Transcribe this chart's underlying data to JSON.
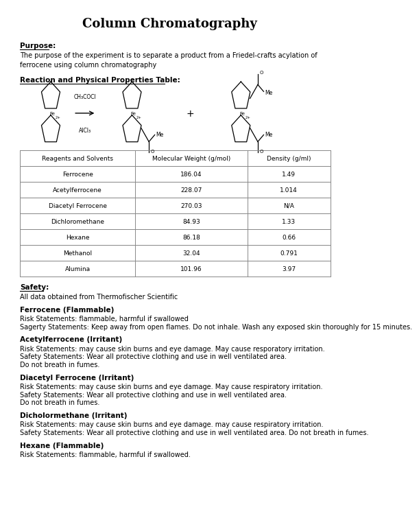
{
  "title": "Column Chromatography",
  "purpose_label": "Purpose:",
  "purpose_text": "The purpose of the experiment is to separate a product from a Friedel-crafts acylation of\nferrocene using column chromatography",
  "reaction_label": "Reaction and Physical Properties Table:",
  "table_headers": [
    "Reagents and Solvents",
    "Molecular Weight (g/mol)",
    "Density (g/ml)"
  ],
  "table_rows": [
    [
      "Ferrocene",
      "186.04",
      "1.49"
    ],
    [
      "Acetylferrocene",
      "228.07",
      "1.014"
    ],
    [
      "Diacetyl Ferrocene",
      "270.03",
      "N/A"
    ],
    [
      "Dichloromethane",
      "84.93",
      "1.33"
    ],
    [
      "Hexane",
      "86.18",
      "0.66"
    ],
    [
      "Methanol",
      "32.04",
      "0.791"
    ],
    [
      "Alumina",
      "101.96",
      "3.97"
    ]
  ],
  "safety_label": "Safety:",
  "safety_text": "All data obtained from Thermofischer Scientific",
  "sections": [
    {
      "header": "Ferrocene (Flammable)",
      "lines": [
        "Risk Statements: flammable, harmful if swallowed",
        "Sagerty Statements: Keep away from open flames. Do not inhale. Wash any exposed skin thoroughly for 15 minutes."
      ]
    },
    {
      "header": "Acetylferrocene (Irritant)",
      "lines": [
        "Risk Statements: may cause skin burns and eye damage. May cause resporatory irritation.",
        "Safety Statements: Wear all protective clothing and use in well ventilated area.",
        "Do not breath in fumes."
      ]
    },
    {
      "header": "Diacetyl Ferrocene (Irritant)",
      "lines": [
        "Risk Statements: may cause skin burns and eye damage. May cause respiratory irritation.",
        "Safety Statements: Wear all protective clothing and use in well ventilated area.",
        "Do not breath in fumes."
      ]
    },
    {
      "header": "Dicholormethane (Irritant)",
      "lines": [
        "Risk Statements: may cause skin burns and eye damage. may cause respiratory irritation.",
        "Safety Statements: Wear all protective clothing and use in well ventilated area. Do not breath in fumes."
      ]
    },
    {
      "header": "Hexane (Flammable)",
      "lines": [
        "Risk Statements: flammable, harmful if swallowed."
      ]
    }
  ],
  "bg_color": "#ffffff",
  "text_color": "#000000",
  "table_line_color": "#888888"
}
